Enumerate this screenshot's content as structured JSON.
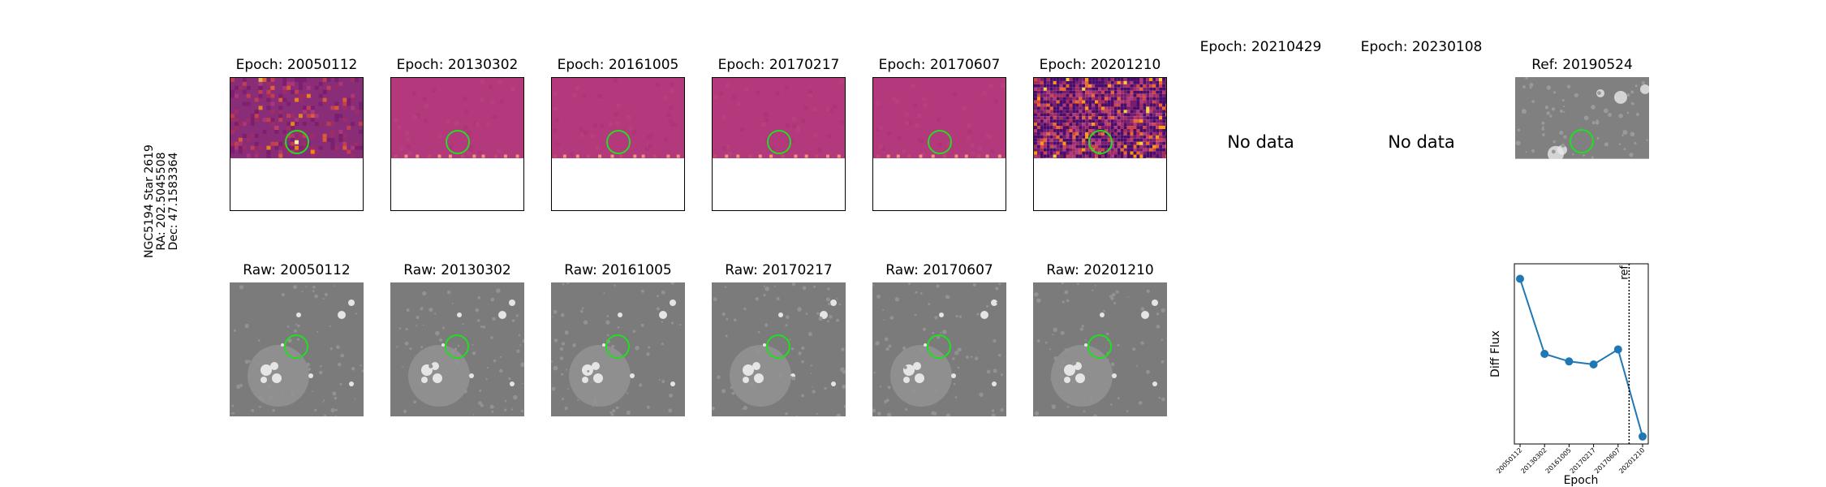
{
  "row_label": [
    "NGC5194 Star 2619",
    "RA: 202.5045508",
    "Dec: 47.1583364"
  ],
  "diff_row": [
    {
      "title": "Epoch: 20050112",
      "variant": "speckled"
    },
    {
      "title": "Epoch: 20130302",
      "variant": "flat"
    },
    {
      "title": "Epoch: 20161005",
      "variant": "flat"
    },
    {
      "title": "Epoch: 20170217",
      "variant": "flat"
    },
    {
      "title": "Epoch: 20170607",
      "variant": "flat"
    },
    {
      "title": "Epoch: 20201210",
      "variant": "noisy"
    },
    {
      "title": "Epoch: 20210429",
      "nodata": "No data"
    },
    {
      "title": "Epoch: 20230108",
      "nodata": "No data"
    },
    {
      "title": "Ref: 20190524",
      "variant": "ref"
    }
  ],
  "raw_row": [
    {
      "title": "Raw: 20050112"
    },
    {
      "title": "Raw: 20130302"
    },
    {
      "title": "Raw: 20161005"
    },
    {
      "title": "Raw: 20170217"
    },
    {
      "title": "Raw: 20170607"
    },
    {
      "title": "Raw: 20201210"
    }
  ],
  "colors": {
    "marker_ring": "#22dd22",
    "line": "#1f77b4",
    "diff_base": "#b03a7a"
  },
  "chart_data": {
    "type": "line",
    "x": [
      "20050112",
      "20130302",
      "20161005",
      "20170217",
      "20170607",
      "20201210"
    ],
    "series": [
      {
        "values": [
          1.0,
          0.5,
          0.45,
          0.43,
          0.53,
          -0.05
        ]
      }
    ],
    "xlabel": "Epoch",
    "ylabel": "Diff Flux",
    "ref_line": {
      "label": "ref",
      "x_position": 4.45
    },
    "ylim": [
      -0.1,
      1.1
    ],
    "yticks_shown": false,
    "grid": false
  }
}
